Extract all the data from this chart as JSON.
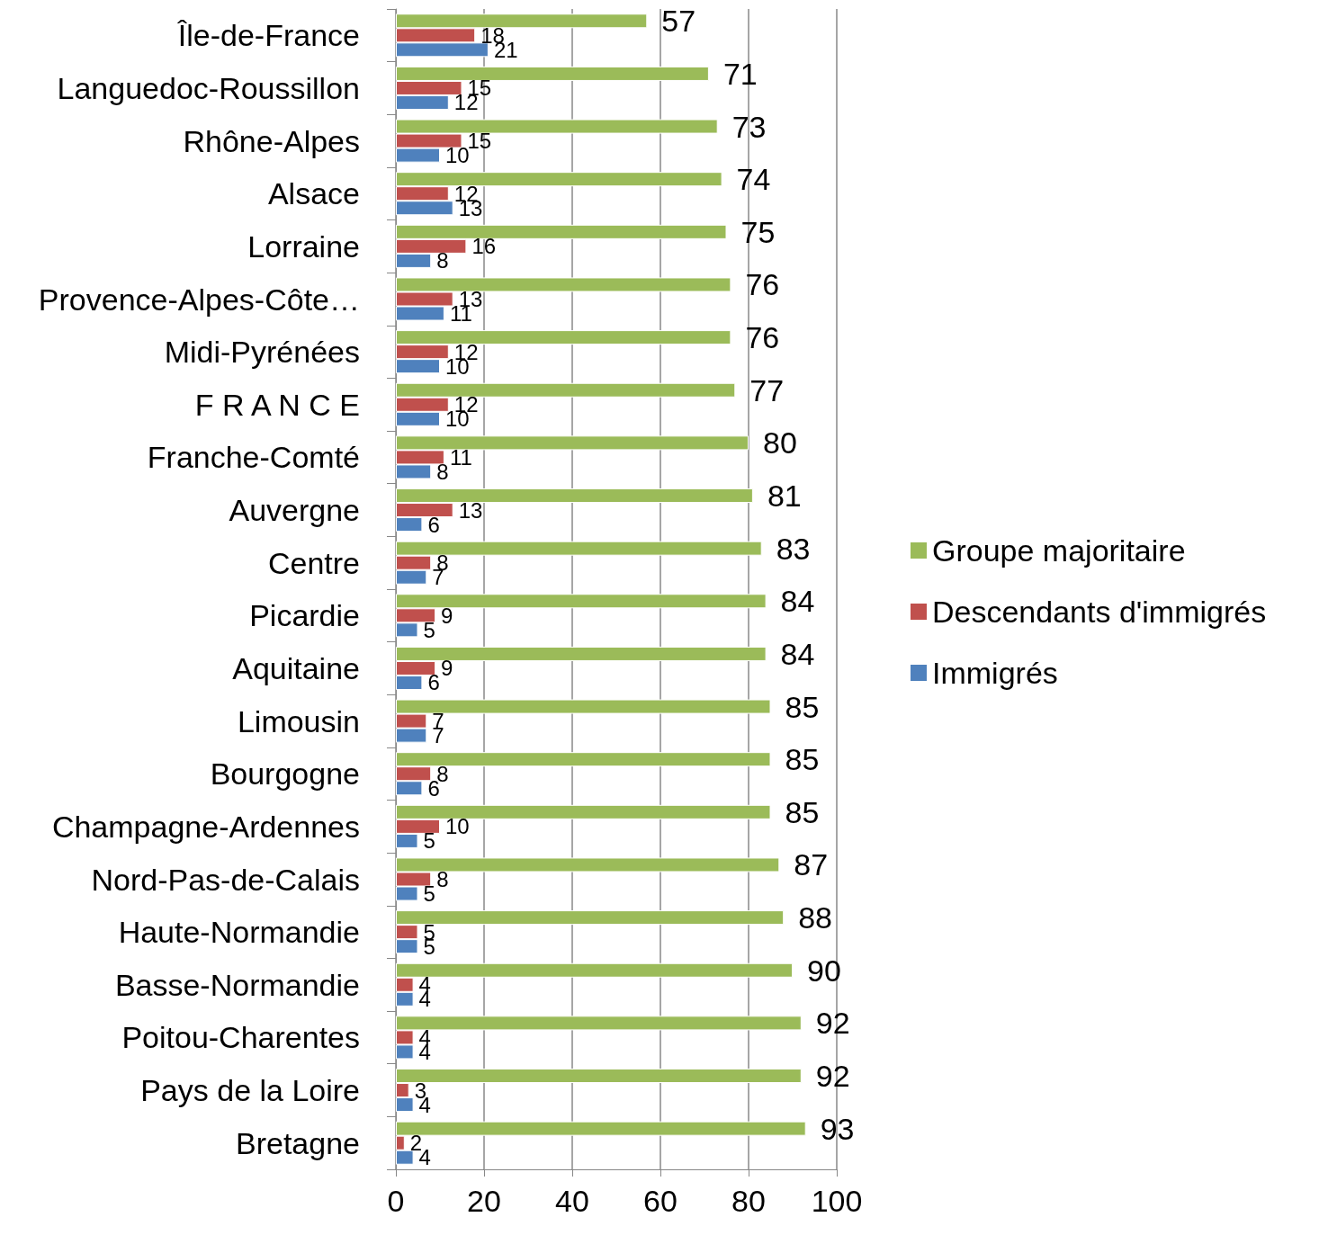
{
  "chart_data": {
    "type": "bar",
    "orientation": "horizontal",
    "categories": [
      "Île-de-France",
      "Languedoc-Roussillon",
      "Rhône-Alpes",
      "Alsace",
      "Lorraine",
      "Provence-Alpes-Côte…",
      "Midi-Pyrénées",
      "F R A N C E",
      "Franche-Comté",
      "Auvergne",
      "Centre",
      "Picardie",
      "Aquitaine",
      "Limousin",
      "Bourgogne",
      "Champagne-Ardennes",
      "Nord-Pas-de-Calais",
      "Haute-Normandie",
      "Basse-Normandie",
      "Poitou-Charentes",
      "Pays de la Loire",
      "Bretagne"
    ],
    "series": [
      {
        "name": "Groupe majoritaire",
        "color": "#9bbb59",
        "values": [
          57,
          71,
          73,
          74,
          75,
          76,
          76,
          77,
          80,
          81,
          83,
          84,
          84,
          85,
          85,
          85,
          87,
          88,
          90,
          92,
          92,
          93
        ]
      },
      {
        "name": "Descendants d'immigrés",
        "color": "#c0504d",
        "values": [
          18,
          15,
          15,
          12,
          16,
          13,
          12,
          12,
          11,
          13,
          8,
          9,
          9,
          7,
          8,
          10,
          8,
          5,
          4,
          4,
          3,
          2
        ]
      },
      {
        "name": "Immigrés",
        "color": "#4f81bd",
        "values": [
          21,
          12,
          10,
          13,
          8,
          11,
          10,
          10,
          8,
          6,
          7,
          5,
          6,
          7,
          6,
          5,
          5,
          5,
          4,
          4,
          4,
          4
        ]
      }
    ],
    "xlim": [
      0,
      100
    ],
    "xticks": [
      0,
      20,
      40,
      60,
      80,
      100
    ],
    "grid": "x",
    "legend": "right",
    "data_labels": true
  }
}
